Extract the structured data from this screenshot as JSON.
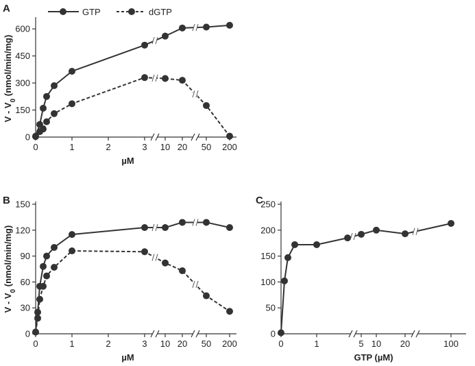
{
  "legend": {
    "gtp_label": "GTP",
    "dgtp_label": "dGTP"
  },
  "chart_data": [
    {
      "panel": "A",
      "type": "line",
      "ylabel_main": "V - V",
      "ylabel_sub": "0",
      "ylabel_rest": " (nmol/min/mg)",
      "xlabel": "µM",
      "ylim": [
        0,
        650
      ],
      "yticks": [
        0,
        150,
        300,
        450,
        600
      ],
      "xtick_labels": [
        "0",
        "1",
        "2",
        "3",
        "10",
        "20",
        "50",
        "200"
      ],
      "series": [
        {
          "name": "GTP",
          "style": "solid",
          "x": [
            "0",
            "0.1",
            "0.2",
            "0.3",
            "0.5",
            "1",
            "3",
            "10",
            "20",
            "50",
            "200"
          ],
          "values": [
            5,
            70,
            160,
            225,
            285,
            365,
            510,
            560,
            605,
            610,
            620
          ]
        },
        {
          "name": "dGTP",
          "style": "dashed",
          "x": [
            "0",
            "0.1",
            "0.2",
            "0.3",
            "0.5",
            "1",
            "3",
            "10",
            "20",
            "50",
            "200"
          ],
          "values": [
            3,
            30,
            45,
            85,
            130,
            185,
            330,
            325,
            315,
            175,
            5
          ]
        }
      ]
    },
    {
      "panel": "B",
      "type": "line",
      "ylabel_main": "V - V",
      "ylabel_sub": "0",
      "ylabel_rest": " (nmol/min/mg)",
      "xlabel": "µM",
      "ylim": [
        0,
        150
      ],
      "yticks": [
        0,
        30,
        60,
        90,
        120,
        150
      ],
      "xtick_labels": [
        "0",
        "1",
        "2",
        "3",
        "10",
        "20",
        "50",
        "200"
      ],
      "series": [
        {
          "name": "GTP",
          "style": "solid",
          "x": [
            "0",
            "0.05",
            "0.1",
            "0.2",
            "0.3",
            "0.5",
            "1",
            "3",
            "10",
            "20",
            "50",
            "200"
          ],
          "values": [
            2,
            25,
            55,
            78,
            90,
            100,
            115,
            123,
            123,
            129,
            129,
            123
          ]
        },
        {
          "name": "dGTP",
          "style": "dashed",
          "x": [
            "0",
            "0.05",
            "0.1",
            "0.2",
            "0.3",
            "0.5",
            "1",
            "3",
            "10",
            "20",
            "50",
            "200"
          ],
          "values": [
            2,
            18,
            40,
            55,
            67,
            77,
            96,
            95,
            82,
            73,
            44,
            26
          ]
        }
      ]
    },
    {
      "panel": "C",
      "type": "line",
      "xlabel": "GTP (µM)",
      "ylim": [
        0,
        250
      ],
      "yticks": [
        0,
        50,
        100,
        150,
        200,
        250
      ],
      "xtick_labels": [
        "0",
        "1",
        "5",
        "10",
        "20",
        "100"
      ],
      "series": [
        {
          "name": "GTP",
          "style": "solid",
          "x": [
            "0",
            "0.1",
            "0.2",
            "0.4",
            "1",
            "3",
            "5",
            "10",
            "20",
            "100"
          ],
          "values": [
            2,
            102,
            147,
            172,
            172,
            185,
            192,
            200,
            193,
            213
          ]
        }
      ]
    }
  ]
}
